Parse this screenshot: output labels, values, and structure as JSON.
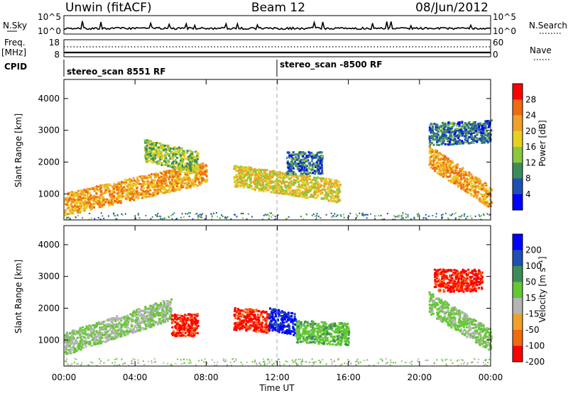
{
  "header": {
    "station": "Unwin (fitACF)",
    "beam": "Beam 12",
    "date": "08/Jun/2012"
  },
  "strips": {
    "nsky_label": "N.Sky",
    "nsky_ticks": [
      "10^5",
      "10^0"
    ],
    "nsearch_label": "N.Search",
    "nsearch_ticks": [
      "10^5",
      "10^0"
    ],
    "freq_label_1": "Freq.",
    "freq_label_2": "[MHz]",
    "freq_ticks": [
      "18",
      "8"
    ],
    "nave_label": "Nave",
    "nave_ticks": [
      "60",
      "0"
    ],
    "cpid_label": "CPID",
    "cpid_segments": [
      "stereo_scan 8551 RF",
      "stereo_scan -8500 RF"
    ]
  },
  "axes": {
    "ylabel": "Slant Range [km]",
    "yticks": [
      "1000",
      "2000",
      "3000",
      "4000"
    ],
    "xlabel": "Time UT",
    "xticks": [
      "00:00",
      "04:00",
      "08:00",
      "12:00",
      "16:00",
      "20:00",
      "00:00"
    ]
  },
  "power_colorbar": {
    "label": "Power [dB]",
    "ticks": [
      "28",
      "24",
      "20",
      "16",
      "12",
      "8",
      "4"
    ],
    "colors": [
      "#ff0000",
      "#f06a10",
      "#f0a028",
      "#e8d020",
      "#8cc83c",
      "#3c8c5a",
      "#1e50b4",
      "#0000ff"
    ]
  },
  "velocity_colorbar": {
    "label": "Velocity [m s⁻¹]",
    "ticks": [
      "200",
      "100",
      "50",
      "15",
      "-15",
      "-50",
      "-100",
      "-200"
    ],
    "colors": [
      "#0000ff",
      "#1e50b4",
      "#3c8c5a",
      "#64c832",
      "#b4b4b4",
      "#f0a028",
      "#f06a10",
      "#ff0000"
    ]
  },
  "chart_data": [
    {
      "type": "heatmap",
      "title": "Beam 12",
      "xlabel": "Time UT",
      "ylabel": "Slant Range [km]",
      "xlim": [
        0,
        24
      ],
      "ylim": [
        180,
        4600
      ],
      "colorbar": {
        "label": "Power [dB]",
        "range": [
          0,
          32
        ]
      },
      "regions": [
        {
          "t_start": 0.0,
          "t_end": 8.0,
          "r_center_start": 700,
          "r_center_end": 1700,
          "value": 22
        },
        {
          "t_start": 4.5,
          "t_end": 7.5,
          "r_center_start": 2400,
          "r_center_end": 2000,
          "value": 14
        },
        {
          "t_start": 9.5,
          "t_end": 15.5,
          "r_center_start": 1600,
          "r_center_end": 1100,
          "value": 18
        },
        {
          "t_start": 12.5,
          "t_end": 14.5,
          "r_center_start": 2000,
          "r_center_end": 2000,
          "value": 8
        },
        {
          "t_start": 20.5,
          "t_end": 24.0,
          "r_center_start": 2200,
          "r_center_end": 900,
          "value": 22
        },
        {
          "t_start": 20.5,
          "t_end": 24.0,
          "r_center_start": 2900,
          "r_center_end": 3000,
          "value": 8
        }
      ]
    },
    {
      "type": "heatmap",
      "xlabel": "Time UT",
      "ylabel": "Slant Range [km]",
      "xlim": [
        0,
        24
      ],
      "ylim": [
        180,
        4600
      ],
      "colorbar": {
        "label": "Velocity [m s⁻¹]",
        "range": [
          -250,
          250
        ]
      },
      "regions": [
        {
          "t_start": 0.0,
          "t_end": 6.0,
          "r_center_start": 900,
          "r_center_end": 2000,
          "value": 0
        },
        {
          "t_start": 6.0,
          "t_end": 7.5,
          "r_center_start": 1500,
          "r_center_end": 1500,
          "value": -200
        },
        {
          "t_start": 9.5,
          "t_end": 11.5,
          "r_center_start": 1700,
          "r_center_end": 1600,
          "value": -200
        },
        {
          "t_start": 11.5,
          "t_end": 13.0,
          "r_center_start": 1700,
          "r_center_end": 1500,
          "value": 200
        },
        {
          "t_start": 13.0,
          "t_end": 16.0,
          "r_center_start": 1300,
          "r_center_end": 1200,
          "value": 50
        },
        {
          "t_start": 20.5,
          "t_end": 24.0,
          "r_center_start": 2200,
          "r_center_end": 1000,
          "value": 10
        },
        {
          "t_start": 20.8,
          "t_end": 23.5,
          "r_center_start": 2900,
          "r_center_end": 2900,
          "value": -200
        }
      ]
    }
  ]
}
